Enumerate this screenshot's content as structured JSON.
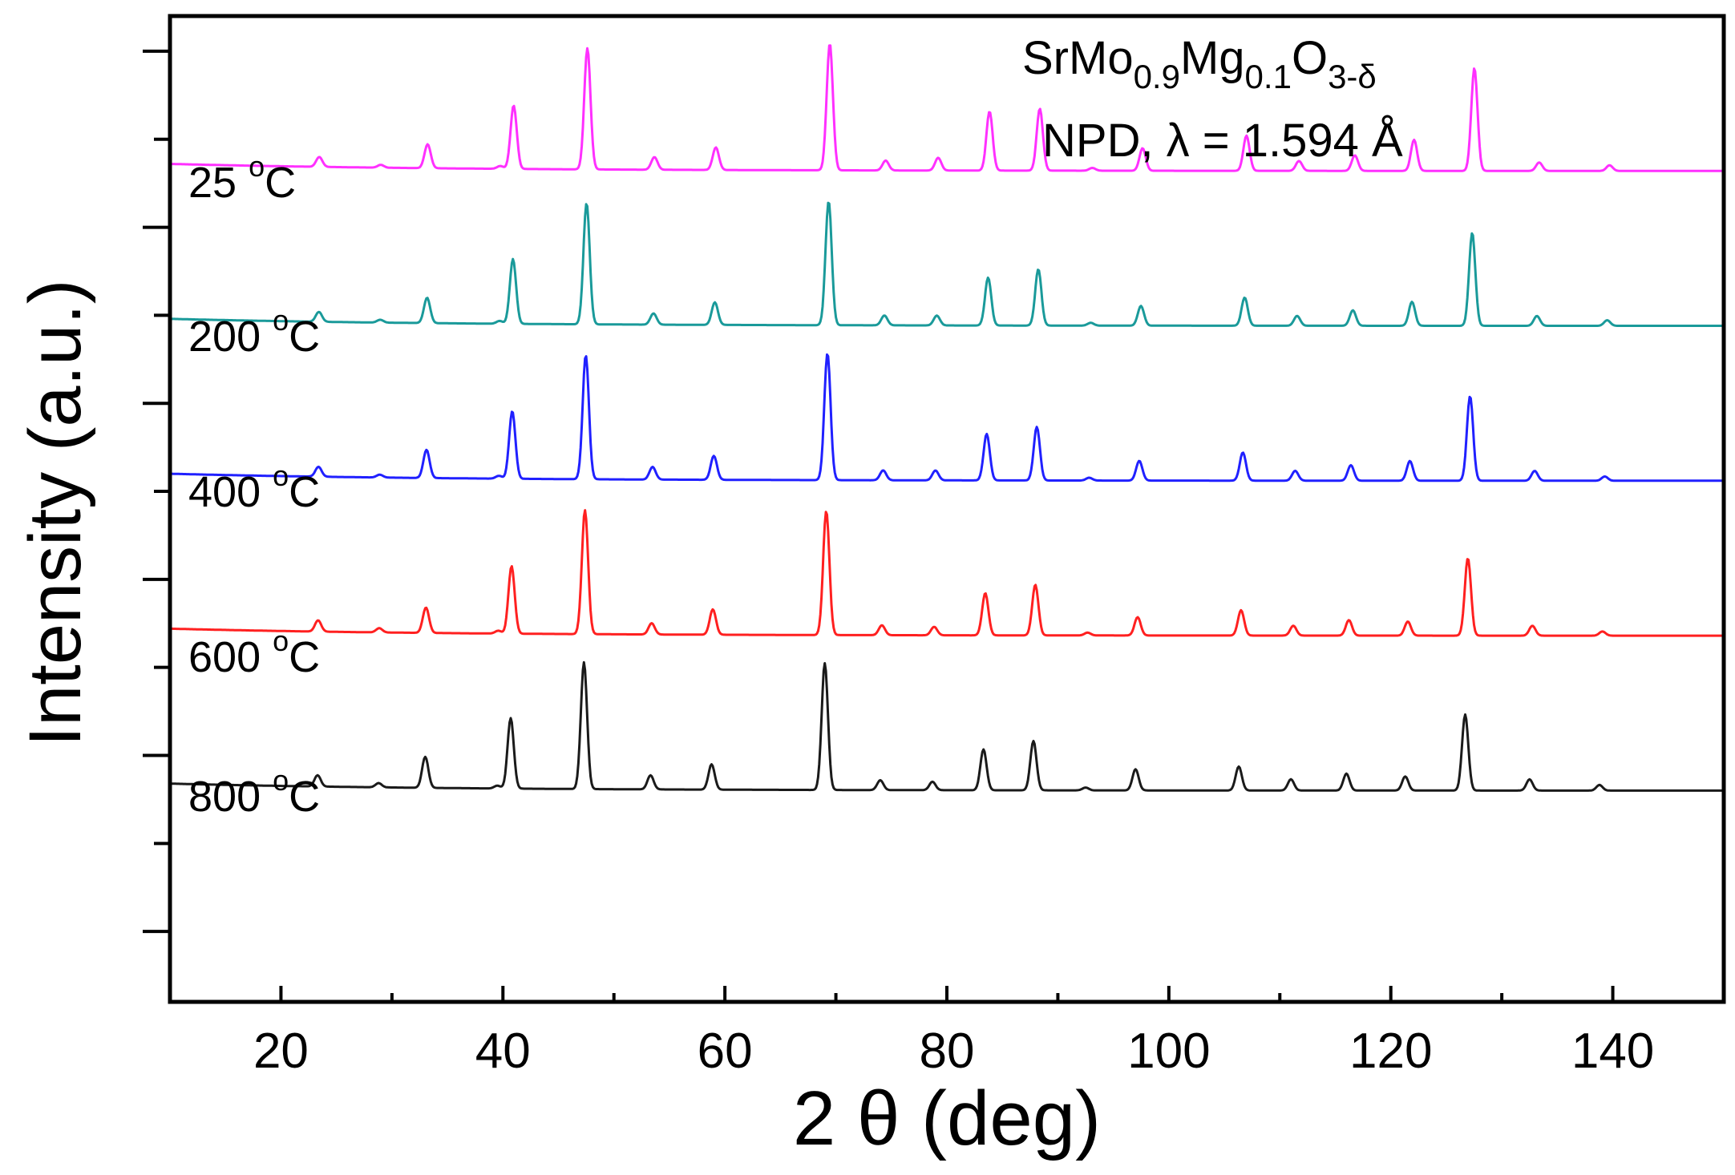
{
  "chart_data": {
    "type": "line",
    "title": "",
    "xlabel": "2 θ (deg)",
    "ylabel": "Intensity (a.u.)",
    "xlim": [
      10,
      150
    ],
    "ylim": [
      -1.5,
      5.5
    ],
    "x_ticks": [
      20,
      40,
      60,
      80,
      100,
      120,
      140
    ],
    "annotation": {
      "formula": {
        "a": "SrMo",
        "b": "0.9",
        "c": "Mg",
        "d": "0.1",
        "e": "O",
        "f": "3-δ"
      },
      "line2": "NPD, λ = 1.594 Å"
    },
    "series": [
      {
        "name": "800 °C",
        "label": {
          "num": "800 ",
          "deg": "o",
          "unit": "C"
        },
        "color": "#1a1a1a",
        "baseline": 0.0,
        "shift": 0.0,
        "peaks": [
          [
            23.3,
            0.08
          ],
          [
            28.8,
            0.03
          ],
          [
            33.0,
            0.22
          ],
          [
            39.5,
            0.02
          ],
          [
            40.7,
            0.5
          ],
          [
            47.3,
            0.9
          ],
          [
            53.3,
            0.1
          ],
          [
            58.8,
            0.18
          ],
          [
            69.0,
            0.9
          ],
          [
            74.0,
            0.07
          ],
          [
            78.7,
            0.06
          ],
          [
            83.3,
            0.29
          ],
          [
            87.8,
            0.35
          ],
          [
            92.5,
            0.02
          ],
          [
            97.0,
            0.15
          ],
          [
            106.3,
            0.17
          ],
          [
            111.0,
            0.08
          ],
          [
            116.0,
            0.12
          ],
          [
            121.3,
            0.1
          ],
          [
            126.7,
            0.54
          ],
          [
            132.5,
            0.08
          ],
          [
            138.8,
            0.04
          ]
        ]
      },
      {
        "name": "600 °C",
        "label": {
          "num": "600 ",
          "deg": "o",
          "unit": "C"
        },
        "color": "#ff2020",
        "baseline": 1.1,
        "shift": 0.25,
        "peaks": [
          [
            23.3,
            0.08
          ],
          [
            28.8,
            0.03
          ],
          [
            33.0,
            0.18
          ],
          [
            39.5,
            0.02
          ],
          [
            40.7,
            0.48
          ],
          [
            47.3,
            0.88
          ],
          [
            53.3,
            0.08
          ],
          [
            58.8,
            0.18
          ],
          [
            69.0,
            0.88
          ],
          [
            74.0,
            0.07
          ],
          [
            78.7,
            0.06
          ],
          [
            83.3,
            0.3
          ],
          [
            87.8,
            0.36
          ],
          [
            92.5,
            0.02
          ],
          [
            97.0,
            0.13
          ],
          [
            106.3,
            0.18
          ],
          [
            111.0,
            0.07
          ],
          [
            116.0,
            0.11
          ],
          [
            121.3,
            0.1
          ],
          [
            126.7,
            0.55
          ],
          [
            132.5,
            0.07
          ],
          [
            138.8,
            0.03
          ]
        ]
      },
      {
        "name": "400 °C",
        "label": {
          "num": "400 ",
          "deg": "o",
          "unit": "C"
        },
        "color": "#2020ff",
        "baseline": 2.2,
        "shift": 0.45,
        "peaks": [
          [
            23.3,
            0.07
          ],
          [
            28.8,
            0.02
          ],
          [
            33.0,
            0.2
          ],
          [
            39.5,
            0.02
          ],
          [
            40.7,
            0.48
          ],
          [
            47.3,
            0.88
          ],
          [
            53.3,
            0.09
          ],
          [
            58.8,
            0.17
          ],
          [
            69.0,
            0.9
          ],
          [
            74.0,
            0.07
          ],
          [
            78.7,
            0.07
          ],
          [
            83.3,
            0.33
          ],
          [
            87.8,
            0.38
          ],
          [
            92.5,
            0.02
          ],
          [
            97.0,
            0.14
          ],
          [
            106.3,
            0.2
          ],
          [
            111.0,
            0.07
          ],
          [
            116.0,
            0.11
          ],
          [
            121.3,
            0.14
          ],
          [
            126.7,
            0.6
          ],
          [
            132.5,
            0.07
          ],
          [
            138.8,
            0.03
          ]
        ]
      },
      {
        "name": "200 °C",
        "label": {
          "num": "200 ",
          "deg": "o",
          "unit": "C"
        },
        "color": "#1a9a9a",
        "baseline": 3.3,
        "shift": 0.65,
        "peaks": [
          [
            23.3,
            0.07
          ],
          [
            28.8,
            0.02
          ],
          [
            33.0,
            0.18
          ],
          [
            39.5,
            0.02
          ],
          [
            40.7,
            0.46
          ],
          [
            47.3,
            0.86
          ],
          [
            53.3,
            0.08
          ],
          [
            58.8,
            0.16
          ],
          [
            69.0,
            0.88
          ],
          [
            74.0,
            0.07
          ],
          [
            78.7,
            0.07
          ],
          [
            83.3,
            0.34
          ],
          [
            87.8,
            0.4
          ],
          [
            92.5,
            0.02
          ],
          [
            97.0,
            0.14
          ],
          [
            106.3,
            0.2
          ],
          [
            111.0,
            0.07
          ],
          [
            116.0,
            0.11
          ],
          [
            121.3,
            0.17
          ],
          [
            126.7,
            0.66
          ],
          [
            132.5,
            0.07
          ],
          [
            138.8,
            0.04
          ]
        ]
      },
      {
        "name": "25 °C",
        "label": {
          "num": "25 ",
          "deg": "o",
          "unit": "C"
        },
        "color": "#ff30ff",
        "baseline": 4.4,
        "shift": 0.85,
        "peaks": [
          [
            23.3,
            0.07
          ],
          [
            28.8,
            0.02
          ],
          [
            33.0,
            0.17
          ],
          [
            39.5,
            0.02
          ],
          [
            40.7,
            0.45
          ],
          [
            47.3,
            0.86
          ],
          [
            53.3,
            0.09
          ],
          [
            58.8,
            0.16
          ],
          [
            69.0,
            0.9
          ],
          [
            74.0,
            0.07
          ],
          [
            78.7,
            0.09
          ],
          [
            83.3,
            0.42
          ],
          [
            87.8,
            0.44
          ],
          [
            92.5,
            0.02
          ],
          [
            97.0,
            0.16
          ],
          [
            106.3,
            0.25
          ],
          [
            111.0,
            0.07
          ],
          [
            116.0,
            0.11
          ],
          [
            121.3,
            0.22
          ],
          [
            126.7,
            0.73
          ],
          [
            132.5,
            0.06
          ],
          [
            138.8,
            0.04
          ]
        ]
      }
    ]
  }
}
